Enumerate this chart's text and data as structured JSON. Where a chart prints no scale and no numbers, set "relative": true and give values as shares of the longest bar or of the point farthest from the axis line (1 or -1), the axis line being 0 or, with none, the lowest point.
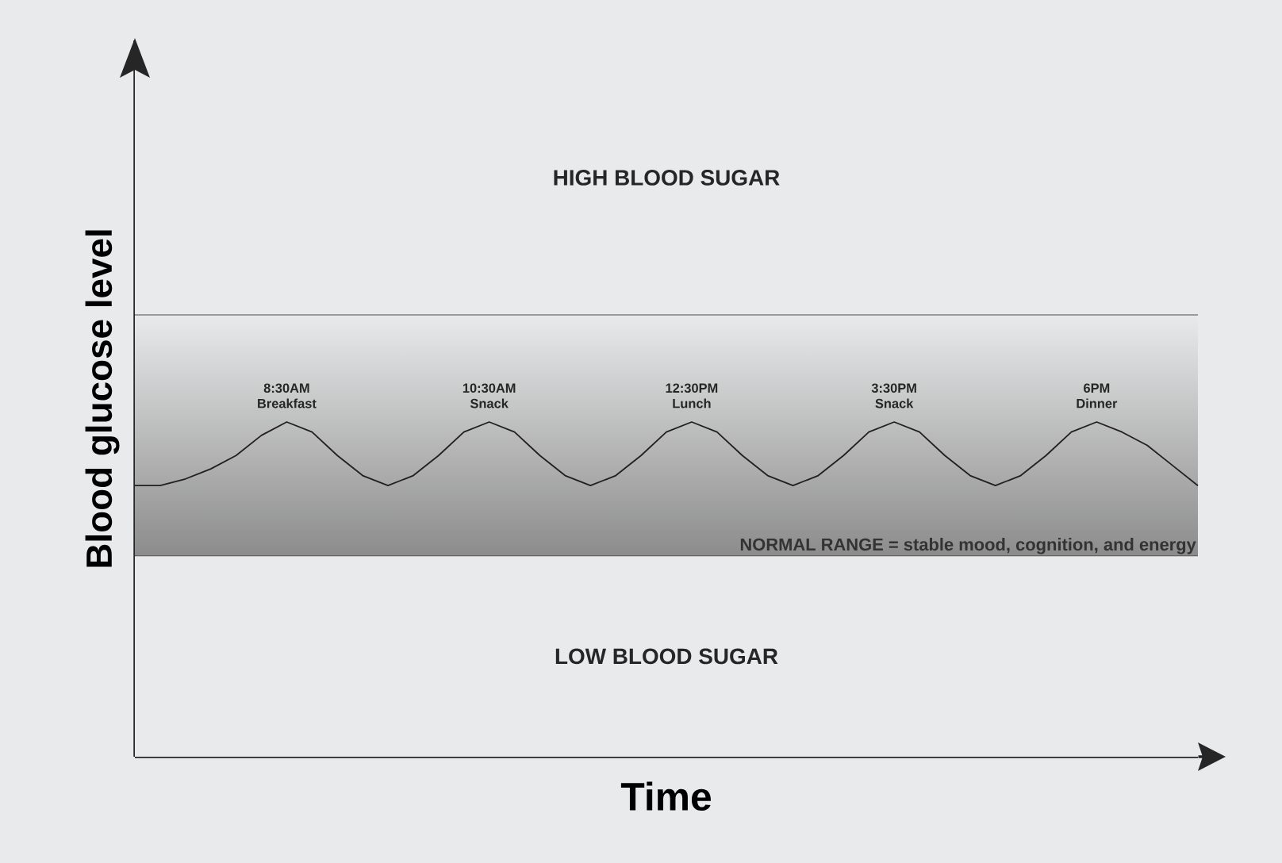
{
  "chart_data": {
    "type": "line",
    "relative": true,
    "xlabel": "Time",
    "ylabel": "Blood glucose level",
    "categories": [
      null,
      null,
      null,
      null,
      null,
      null,
      null,
      null,
      null,
      null,
      null,
      null,
      null,
      null,
      null,
      null,
      null,
      null,
      null,
      null,
      null,
      null,
      null,
      null,
      null,
      null,
      null,
      null,
      null,
      null,
      null,
      null,
      null,
      null,
      null,
      null,
      null,
      null,
      null,
      null,
      null,
      null,
      null
    ],
    "series": [
      {
        "color": "#231f20",
        "values": [
          0.81,
          0.81,
          0.83,
          0.86,
          0.9,
          0.96,
          1,
          0.97,
          0.9,
          0.84,
          0.81,
          0.84,
          0.9,
          0.97,
          1,
          0.97,
          0.9,
          0.84,
          0.81,
          0.84,
          0.9,
          0.97,
          1,
          0.97,
          0.9,
          0.84,
          0.81,
          0.84,
          0.9,
          0.97,
          1,
          0.97,
          0.9,
          0.84,
          0.81,
          0.84,
          0.9,
          0.97,
          1,
          0.97,
          0.93,
          0.87,
          0.81
        ]
      }
    ],
    "bands": [
      {
        "axis": "y",
        "from": 0,
        "to": 0.6,
        "color": "#e9eaeb",
        "label": "LOW BLOOD SUGAR"
      },
      {
        "axis": "y",
        "from": 0.6,
        "to": 1.32,
        "color": "#8c8c8c",
        "label": "NORMAL RANGE = stable mood, cognition, and energy"
      },
      {
        "axis": "y",
        "from": 1.32,
        "to": 2.14,
        "color": "#e9eaeb",
        "label": "HIGH BLOOD SUGAR"
      }
    ],
    "ref_lines": [
      {
        "axis": "y",
        "value": 0.6
      },
      {
        "axis": "y",
        "value": 1.32
      }
    ],
    "annotations": [
      "8:30AM Breakfast",
      "10:30AM Snack",
      "12:30PM Lunch",
      "3:30PM Snack",
      "6PM Dinner"
    ],
    "line_style": "solid"
  }
}
